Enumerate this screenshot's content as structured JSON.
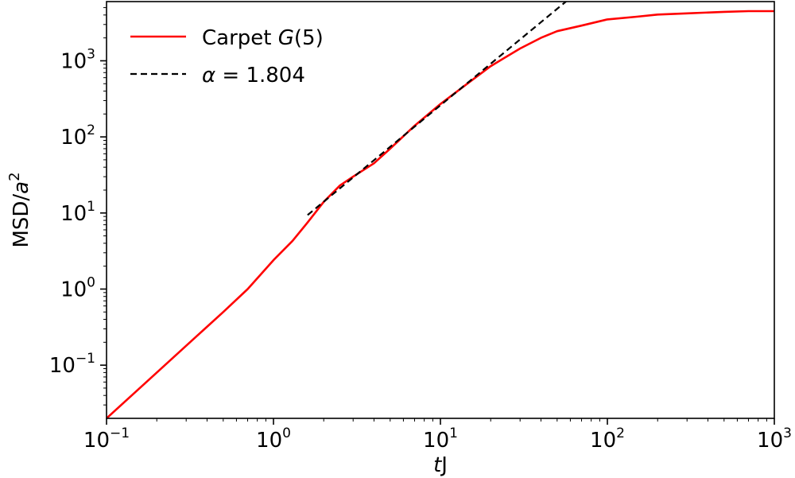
{
  "chart_data": {
    "type": "line",
    "xscale": "log",
    "yscale": "log",
    "xlim": [
      0.1,
      1000
    ],
    "ylim": [
      0.02,
      6000
    ],
    "xlabel": {
      "italic": "t",
      "rest": "J"
    },
    "ylabel": {
      "base": "MSD/",
      "italic": "a",
      "sup": "2"
    },
    "xticks": [
      {
        "value": 0.1,
        "base": "10",
        "exp": "−1"
      },
      {
        "value": 1,
        "base": "10",
        "exp": "0"
      },
      {
        "value": 10,
        "base": "10",
        "exp": "1"
      },
      {
        "value": 100,
        "base": "10",
        "exp": "2"
      },
      {
        "value": 1000,
        "base": "10",
        "exp": "3"
      }
    ],
    "yticks": [
      {
        "value": 0.1,
        "base": "10",
        "exp": "−1"
      },
      {
        "value": 1,
        "base": "10",
        "exp": "0"
      },
      {
        "value": 10,
        "base": "10",
        "exp": "1"
      },
      {
        "value": 100,
        "base": "10",
        "exp": "2"
      },
      {
        "value": 1000,
        "base": "10",
        "exp": "3"
      }
    ],
    "legend": {
      "position": "upper-left"
    },
    "series": [
      {
        "name": "Carpet G(5)",
        "name_parts": {
          "text": "Carpet ",
          "italic": "G",
          "tail": "(5)"
        },
        "color": "#ff0000",
        "style": "solid",
        "x": [
          0.1,
          0.15,
          0.2,
          0.3,
          0.5,
          0.7,
          1.0,
          1.3,
          1.6,
          2.0,
          2.5,
          3.0,
          4.0,
          5.0,
          7.0,
          10,
          15,
          20,
          30,
          40,
          50,
          70,
          100,
          150,
          200,
          300,
          500,
          700,
          1000
        ],
        "y": [
          0.02,
          0.045,
          0.08,
          0.18,
          0.5,
          1.0,
          2.4,
          4.3,
          7.5,
          14,
          23,
          30,
          45,
          70,
          140,
          270,
          530,
          850,
          1450,
          2000,
          2450,
          2900,
          3500,
          3800,
          4050,
          4200,
          4400,
          4500,
          4500
        ]
      },
      {
        "name": "α = 1.804",
        "name_parts": {
          "italic": "α",
          "text": " = 1.804"
        },
        "color": "#000000",
        "style": "dashed",
        "exponent": 1.804,
        "x": [
          1.6,
          60
        ],
        "y": [
          9.4,
          6700
        ]
      }
    ]
  }
}
